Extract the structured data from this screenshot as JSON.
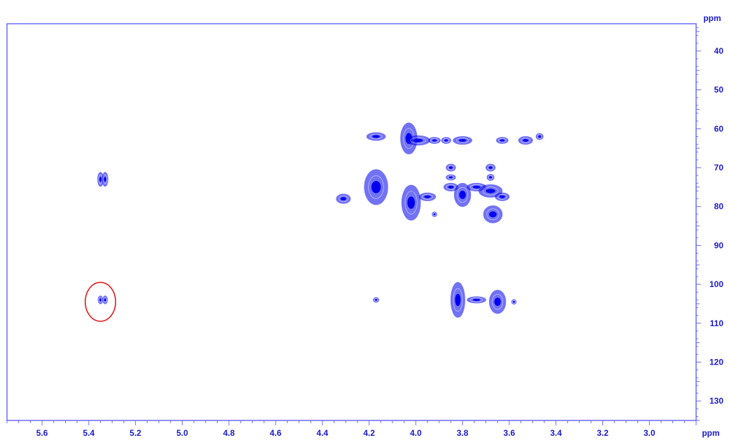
{
  "chart_data": {
    "type": "scatter",
    "title": "",
    "xlabel": "ppm",
    "ylabel": "ppm",
    "xlim": [
      5.75,
      2.8
    ],
    "ylim": [
      33,
      135
    ],
    "x_reversed": true,
    "y_reversed": true,
    "y_axis_side": "right",
    "grid": false,
    "legend": "none",
    "colors": {
      "peaks": "#0000ee",
      "axes": "#6b6bff",
      "labels": "#1a1acd",
      "highlight": "#e02020"
    },
    "xticks": [
      5.6,
      5.4,
      5.2,
      5.0,
      4.8,
      4.6,
      4.4,
      4.2,
      4.0,
      3.8,
      3.6,
      3.4,
      3.2,
      3.0
    ],
    "xtick_labels": [
      "5.6",
      "5.4",
      "5.2",
      "5.0",
      "4.8",
      "4.6",
      "4.4",
      "4.2",
      "4.0",
      "3.8",
      "3.6",
      "3.4",
      "3.2",
      "3.0"
    ],
    "yticks": [
      40,
      50,
      60,
      70,
      80,
      90,
      100,
      110,
      120,
      130
    ],
    "ytick_labels": [
      "40",
      "50",
      "60",
      "70",
      "80",
      "90",
      "100",
      "110",
      "120",
      "130"
    ],
    "series": [
      {
        "values": [
          {
            "x": 5.35,
            "y": 73.0,
            "w": 0.012,
            "h": 1.8
          },
          {
            "x": 5.33,
            "y": 73.0,
            "w": 0.012,
            "h": 1.8
          },
          {
            "x": 5.35,
            "y": 104.0,
            "w": 0.01,
            "h": 1.0
          },
          {
            "x": 5.33,
            "y": 104.0,
            "w": 0.01,
            "h": 1.0
          },
          {
            "x": 4.17,
            "y": 62.0,
            "w": 0.04,
            "h": 1.0
          },
          {
            "x": 4.03,
            "y": 62.5,
            "w": 0.035,
            "h": 4.0
          },
          {
            "x": 3.99,
            "y": 63.0,
            "w": 0.05,
            "h": 1.2
          },
          {
            "x": 3.92,
            "y": 63.0,
            "w": 0.025,
            "h": 0.8
          },
          {
            "x": 3.87,
            "y": 63.0,
            "w": 0.02,
            "h": 0.8
          },
          {
            "x": 3.8,
            "y": 63.0,
            "w": 0.04,
            "h": 1.0
          },
          {
            "x": 3.63,
            "y": 63.0,
            "w": 0.025,
            "h": 0.8
          },
          {
            "x": 3.53,
            "y": 63.0,
            "w": 0.03,
            "h": 1.0
          },
          {
            "x": 3.47,
            "y": 62.0,
            "w": 0.015,
            "h": 0.8
          },
          {
            "x": 4.31,
            "y": 78.0,
            "w": 0.03,
            "h": 1.2
          },
          {
            "x": 4.17,
            "y": 75.0,
            "w": 0.05,
            "h": 4.5
          },
          {
            "x": 4.02,
            "y": 79.0,
            "w": 0.04,
            "h": 4.5
          },
          {
            "x": 3.95,
            "y": 77.5,
            "w": 0.035,
            "h": 1.0
          },
          {
            "x": 3.92,
            "y": 82.0,
            "w": 0.01,
            "h": 0.6
          },
          {
            "x": 3.85,
            "y": 70.0,
            "w": 0.02,
            "h": 0.9
          },
          {
            "x": 3.85,
            "y": 72.5,
            "w": 0.02,
            "h": 0.7
          },
          {
            "x": 3.85,
            "y": 75.0,
            "w": 0.03,
            "h": 1.0
          },
          {
            "x": 3.8,
            "y": 77.0,
            "w": 0.035,
            "h": 3.0
          },
          {
            "x": 3.74,
            "y": 75.0,
            "w": 0.04,
            "h": 1.0
          },
          {
            "x": 3.68,
            "y": 70.0,
            "w": 0.02,
            "h": 0.9
          },
          {
            "x": 3.68,
            "y": 72.5,
            "w": 0.015,
            "h": 0.8
          },
          {
            "x": 3.68,
            "y": 76.0,
            "w": 0.05,
            "h": 1.6
          },
          {
            "x": 3.63,
            "y": 77.5,
            "w": 0.03,
            "h": 1.0
          },
          {
            "x": 3.67,
            "y": 82.0,
            "w": 0.04,
            "h": 2.2
          },
          {
            "x": 4.17,
            "y": 104.0,
            "w": 0.012,
            "h": 0.6
          },
          {
            "x": 3.82,
            "y": 104.0,
            "w": 0.03,
            "h": 4.5
          },
          {
            "x": 3.74,
            "y": 104.0,
            "w": 0.04,
            "h": 0.8
          },
          {
            "x": 3.65,
            "y": 104.5,
            "w": 0.035,
            "h": 3.0
          },
          {
            "x": 3.58,
            "y": 104.5,
            "w": 0.01,
            "h": 0.6
          }
        ]
      }
    ],
    "annotations": [
      {
        "type": "ellipse",
        "x": 5.35,
        "y": 104.5,
        "rx": 0.065,
        "ry": 5.0
      }
    ]
  }
}
